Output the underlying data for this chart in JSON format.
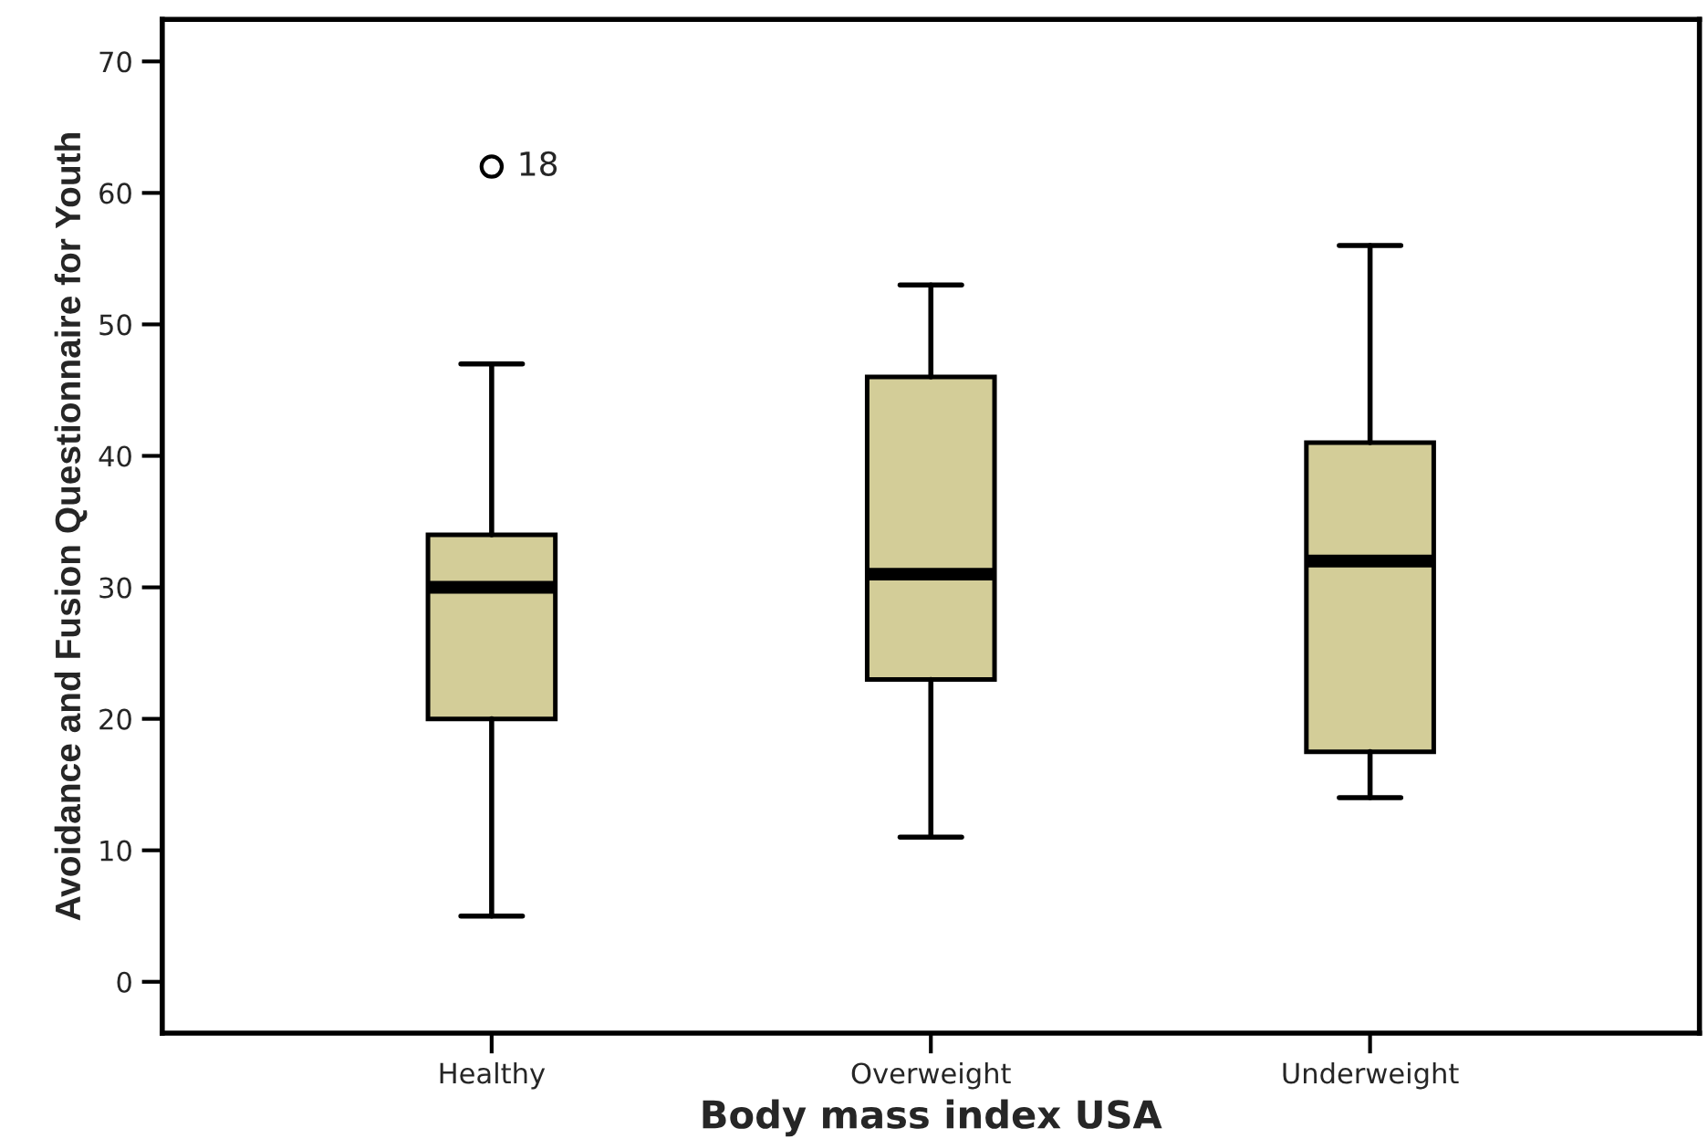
{
  "chart_data": {
    "type": "box",
    "xlabel": "Body mass index USA",
    "ylabel": "Avoidance and Fusion Questionnaire for Youth",
    "categories": [
      "Healthy",
      "Overweight",
      "Underweight"
    ],
    "boxes": [
      {
        "low": 5,
        "q1": 20,
        "median": 30,
        "q3": 34,
        "high": 47,
        "outliers": [
          62
        ]
      },
      {
        "low": 11,
        "q1": 23,
        "median": 31,
        "q3": 46,
        "high": 53
      },
      {
        "low": 14,
        "q1": 17.5,
        "median": 32,
        "q3": 41,
        "high": 56
      }
    ],
    "color": "#d3cd98",
    "ylim": [
      -3.9,
      73.2
    ],
    "yticks": [
      0,
      10,
      20,
      30,
      40,
      50,
      60,
      70
    ],
    "annotations": [
      "18"
    ],
    "grid": false
  }
}
